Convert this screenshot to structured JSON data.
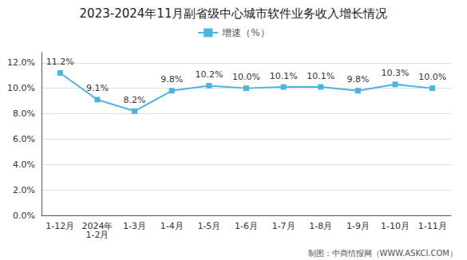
{
  "chart_data": {
    "type": "line",
    "title": "2023-2024年11月副省级中心城市软件业务收入增长情况",
    "categories": [
      "1-12月",
      "2024年\n1-2月",
      "1-3月",
      "1-4月",
      "1-5月",
      "1-6月",
      "1-7月",
      "1-8月",
      "1-9月",
      "1-10月",
      "1-11月"
    ],
    "series": [
      {
        "name": "增速（%）",
        "color": "#4ab5e0",
        "marker": "square",
        "values": [
          11.2,
          9.1,
          8.2,
          9.8,
          10.2,
          10.0,
          10.1,
          10.1,
          9.8,
          10.3,
          10.0
        ],
        "value_labels": [
          "11.2%",
          "9.1%",
          "8.2%",
          "9.8%",
          "10.2%",
          "10.0%",
          "10.1%",
          "10.1%",
          "9.8%",
          "10.3%",
          "10.0%"
        ]
      }
    ],
    "ylim": [
      0,
      12.8
    ],
    "yticks": [
      {
        "value": 0,
        "label": "0.0%"
      },
      {
        "value": 2,
        "label": "2.0%"
      },
      {
        "value": 4,
        "label": "4.0%"
      },
      {
        "value": 6,
        "label": "6.0%"
      },
      {
        "value": 8,
        "label": "8.0%"
      },
      {
        "value": 10,
        "label": "10.0%"
      },
      {
        "value": 12,
        "label": "12.0%"
      }
    ],
    "grid": true,
    "legend": "top",
    "data_labels": true,
    "annotations": [
      "制图：中商情报网（WWW.ASKCI.COM）"
    ]
  }
}
